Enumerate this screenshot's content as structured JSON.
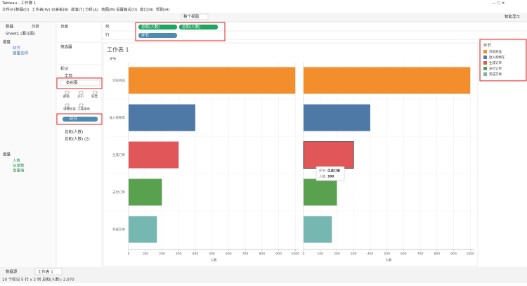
{
  "window": {
    "title": "Tableau - 工作簿 1",
    "menu": [
      "文件(F)",
      "数据(D)",
      "工作表(W)",
      "仪表板(B)",
      "故事(T)",
      "分析(A)",
      "地图(M)",
      "设置格式(O)",
      "窗口(N)",
      "帮助(H)"
    ],
    "view_mode": "整个视图",
    "smart_show": "智能显示"
  },
  "data_pane": {
    "tabs": [
      "数据",
      "分析"
    ],
    "source": "Sheet1 (漏斗图)",
    "dimensions_header": "维度",
    "dimensions": [
      "环节",
      "度量名称"
    ],
    "measures_header": "度量",
    "measures": [
      "人数",
      "记录数",
      "度量值"
    ]
  },
  "shelves": {
    "pages": "页面",
    "filters": "筛选器",
    "marks": "标记",
    "columns_label": "列",
    "columns": [
      "总和(人数)",
      "总和(人数)"
    ],
    "rows_label": "行",
    "rows": [
      "环节"
    ]
  },
  "marks_card": {
    "all": "全部",
    "mark_type": "条形图",
    "buttons": [
      "颜色",
      "大小",
      "标签",
      "详细信息",
      "工具提示"
    ],
    "color_pill": "环节",
    "sub_cards": [
      "总和(人数)",
      "总和(人数) (2)"
    ]
  },
  "chart_data": {
    "type": "bar",
    "title": "工作表 1",
    "header": "环节",
    "categories": [
      "浏览商品",
      "放入购物车",
      "生成订单",
      "支付订单",
      "完成交易"
    ],
    "colors": [
      "#f28e2b",
      "#4e79a7",
      "#e15759",
      "#59a14f",
      "#76b7b2"
    ],
    "series": [
      {
        "values": [
          1000,
          400,
          300,
          200,
          170
        ]
      },
      {
        "values": [
          1000,
          400,
          300,
          200,
          170
        ]
      }
    ],
    "x_label": "人数",
    "xlim": [
      0,
      1020
    ],
    "xticks": [
      0,
      100,
      200,
      300,
      400,
      500,
      600,
      700,
      800,
      900,
      1000
    ],
    "grid": true,
    "legend": {
      "title": "环节",
      "position": "right"
    },
    "tooltip": {
      "category_label": "环节:",
      "value_label": "人数:"
    }
  },
  "tabs": [
    "数据源",
    "工作表 1"
  ],
  "status": [
    "10 个标记",
    "5 行 x 2 列",
    "总和(人数): 2,070"
  ]
}
